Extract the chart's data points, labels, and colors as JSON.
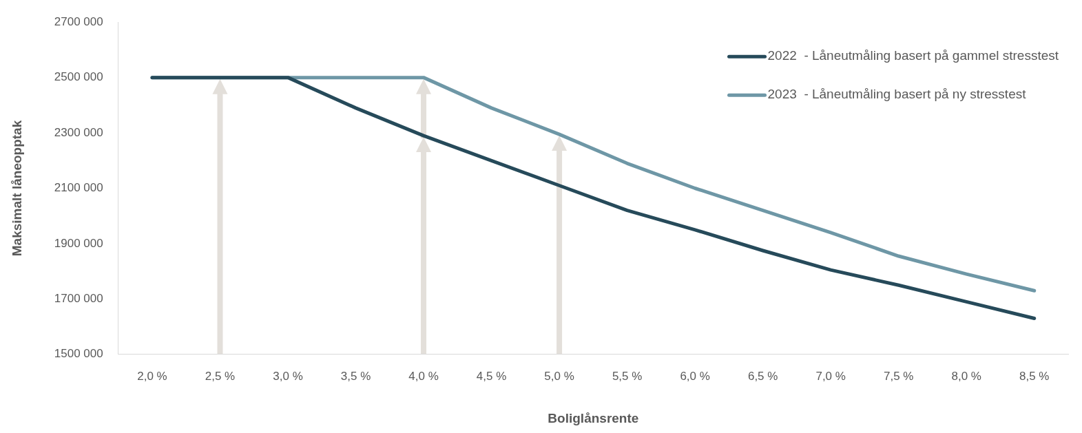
{
  "chart_data": {
    "type": "line",
    "xlabel": "Boliglånsrente",
    "ylabel": "Maksimalt låneopptak",
    "categories": [
      "2,0 %",
      "2,5 %",
      "3,0 %",
      "3,5 %",
      "4,0 %",
      "4,5 %",
      "5,0 %",
      "5,5 %",
      "6,0 %",
      "6,5 %",
      "7,0 %",
      "7,5 %",
      "8,0 %",
      "8,5 %"
    ],
    "series": [
      {
        "name": "2022  - Låneutmåling basert på gammel stresstest",
        "color": "#264a5a",
        "values": [
          2500000,
          2500000,
          2500000,
          2390000,
          2290000,
          2200000,
          2110000,
          2020000,
          1950000,
          1875000,
          1805000,
          1750000,
          1690000,
          1630000
        ]
      },
      {
        "name": "2023  - Låneutmåling basert på ny stresstest",
        "color": "#6e97a6",
        "values": [
          2500000,
          2500000,
          2500000,
          2500000,
          2500000,
          2390000,
          2295000,
          2190000,
          2100000,
          2020000,
          1940000,
          1855000,
          1790000,
          1730000
        ]
      }
    ],
    "ylim": [
      1500000,
      2700000
    ],
    "yticks": [
      {
        "value": 1500000,
        "label": "1500 000"
      },
      {
        "value": 1700000,
        "label": "1700 000"
      },
      {
        "value": 1900000,
        "label": "1900 000"
      },
      {
        "value": 2100000,
        "label": "2100 000"
      },
      {
        "value": 2300000,
        "label": "2300 000"
      },
      {
        "value": 2500000,
        "label": "2500 000"
      },
      {
        "value": 2700000,
        "label": "2700 000"
      }
    ],
    "grid": false,
    "legend": "top right",
    "marker": "none",
    "line_style": "solid"
  }
}
